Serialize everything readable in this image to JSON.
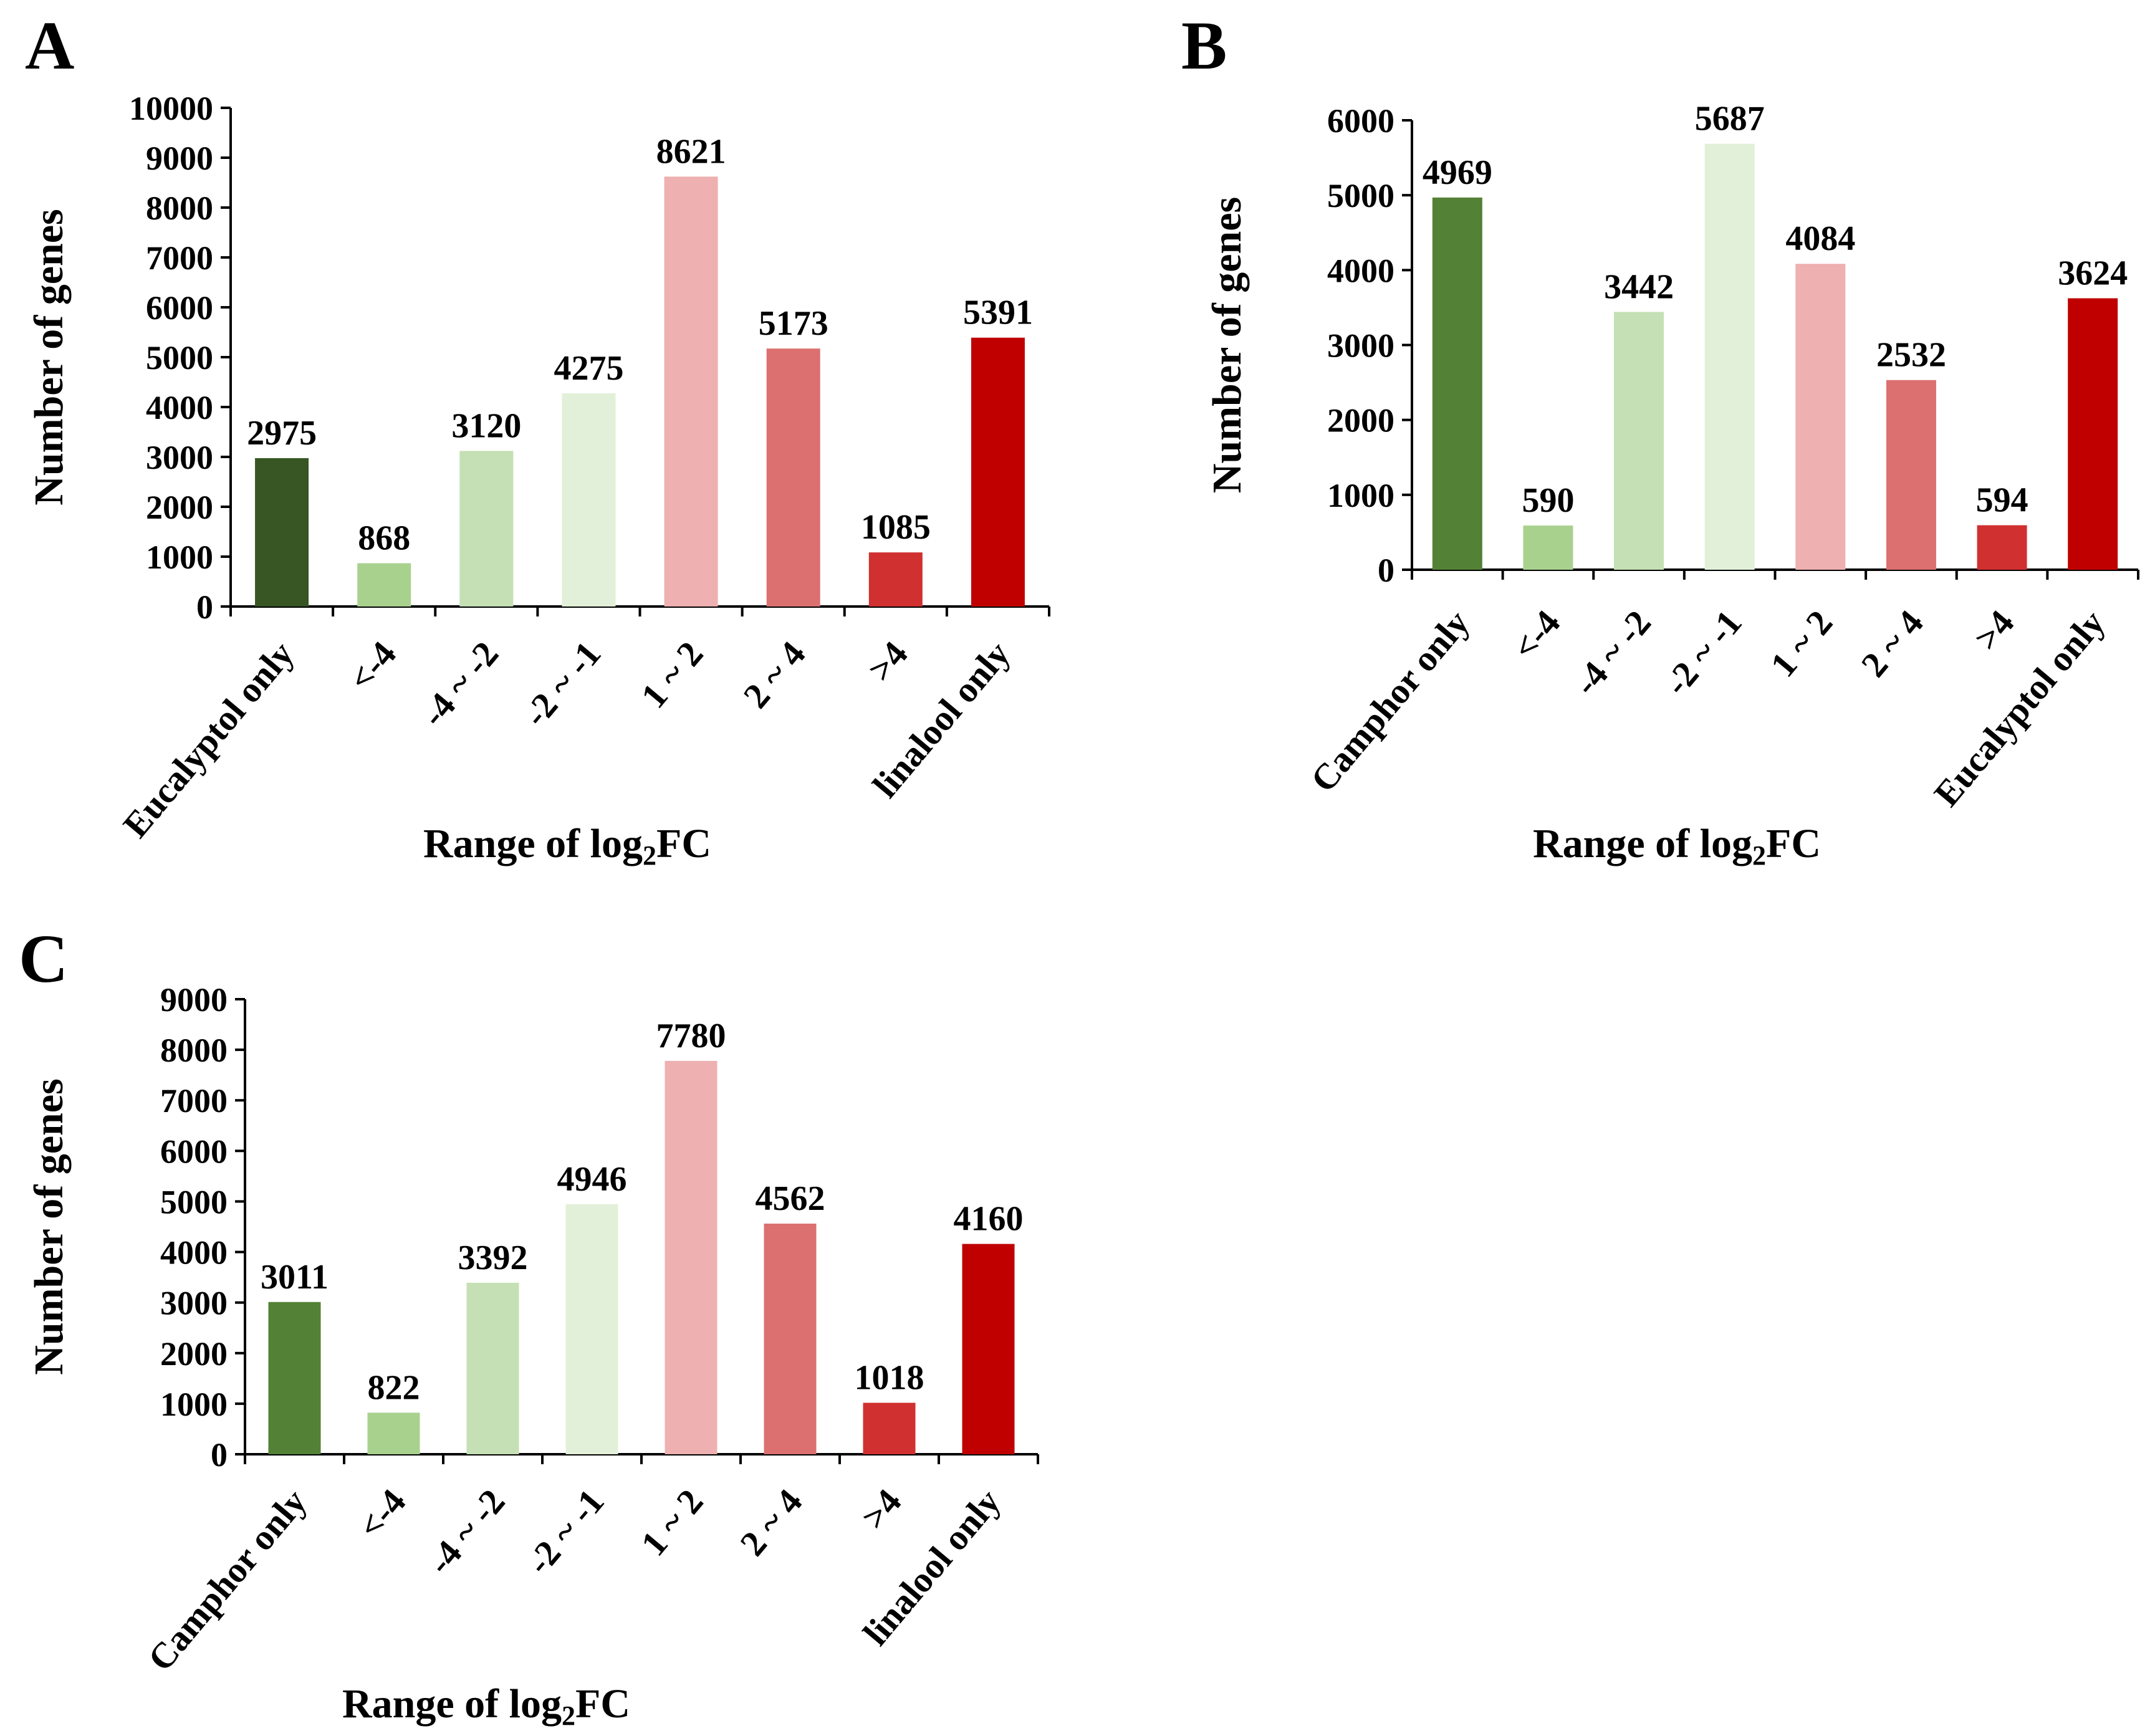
{
  "colors": {
    "eucalyptol_only_A": "#375623",
    "only_green": "#538135",
    "lt_minus4": "#a9d18e",
    "minus4_minus2": "#c5e0b4",
    "minus2_minus1": "#e2f0d9",
    "one_two": "#eeb0b0",
    "two_four": "#dc7070",
    "gt4": "#d03030",
    "linalool_only": "#c00000"
  },
  "chart_data": [
    {
      "panel": "A",
      "type": "bar",
      "categories": [
        "Eucalyptol only",
        "<-4",
        "-4 ~ -2",
        "-2 ~ -1",
        "1 ~ 2",
        "2 ~ 4",
        ">4",
        "linalool only"
      ],
      "values": [
        2975,
        868,
        3120,
        4275,
        8621,
        5173,
        1085,
        5391
      ],
      "value_labels": [
        "2975",
        "868",
        "3120",
        "4275",
        "8621",
        "5173",
        "1085",
        "5391"
      ],
      "bar_colors": [
        "#375623",
        "#a9d18e",
        "#c5e0b4",
        "#e2f0d9",
        "#eeb0b0",
        "#dc7070",
        "#d03030",
        "#c00000"
      ],
      "ylabel": "Number of genes",
      "xlabel_main": "Range of log",
      "xlabel_sub": "2",
      "xlabel_tail": "FC",
      "ylim": [
        0,
        10000
      ],
      "yticks": [
        0,
        1000,
        2000,
        3000,
        4000,
        5000,
        6000,
        7000,
        8000,
        9000,
        10000
      ],
      "ytick_labels": [
        "0",
        "1000",
        "2000",
        "3000",
        "4000",
        "5000",
        "6000",
        "7000",
        "8000",
        "9000",
        "10000"
      ],
      "grid": false,
      "legend": "none"
    },
    {
      "panel": "B",
      "type": "bar",
      "categories": [
        "Camphor only",
        "<-4",
        "-4 ~ -2",
        "-2 ~ -1",
        "1 ~ 2",
        "2 ~ 4",
        ">4",
        "Eucalyptol only"
      ],
      "values": [
        4969,
        590,
        3442,
        5687,
        4084,
        2532,
        594,
        3624
      ],
      "value_labels": [
        "4969",
        "590",
        "3442",
        "5687",
        "4084",
        "2532",
        "594",
        "3624"
      ],
      "bar_colors": [
        "#538135",
        "#a9d18e",
        "#c5e0b4",
        "#e2f0d9",
        "#eeb0b0",
        "#dc7070",
        "#d03030",
        "#c00000"
      ],
      "ylabel": "Number of genes",
      "xlabel_main": "Range of log",
      "xlabel_sub": "2",
      "xlabel_tail": "FC",
      "ylim": [
        0,
        6000
      ],
      "yticks": [
        0,
        1000,
        2000,
        3000,
        4000,
        5000,
        6000
      ],
      "ytick_labels": [
        "0",
        "1000",
        "2000",
        "3000",
        "4000",
        "5000",
        "6000"
      ],
      "grid": false,
      "legend": "none"
    },
    {
      "panel": "C",
      "type": "bar",
      "categories": [
        "Camphor only",
        "<-4",
        "-4 ~ -2",
        "-2 ~ -1",
        "1 ~ 2",
        "2 ~ 4",
        ">4",
        "linalool only"
      ],
      "values": [
        3011,
        822,
        3392,
        4946,
        7780,
        4562,
        1018,
        4160
      ],
      "value_labels": [
        "3011",
        "822",
        "3392",
        "4946",
        "7780",
        "4562",
        "1018",
        "4160"
      ],
      "bar_colors": [
        "#538135",
        "#a9d18e",
        "#c5e0b4",
        "#e2f0d9",
        "#eeb0b0",
        "#dc7070",
        "#d03030",
        "#c00000"
      ],
      "ylabel": "Number of genes",
      "xlabel_main": "Range of log",
      "xlabel_sub": "2",
      "xlabel_tail": "FC",
      "ylim": [
        0,
        9000
      ],
      "yticks": [
        0,
        1000,
        2000,
        3000,
        4000,
        5000,
        6000,
        7000,
        8000,
        9000
      ],
      "ytick_labels": [
        "0",
        "1000",
        "2000",
        "3000",
        "4000",
        "5000",
        "6000",
        "7000",
        "8000",
        "9000"
      ],
      "grid": false,
      "legend": "none"
    }
  ]
}
